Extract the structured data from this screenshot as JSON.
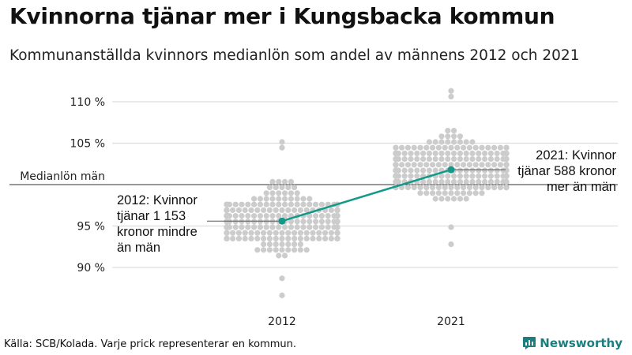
{
  "title": "Kvinnorna tjänar mer i Kungsbacka kommun",
  "subtitle": "Kommunanställda kvinnors medianlön som andel av männens 2012 och 2021",
  "footer": "Källa: SCB/Kolada. Varje prick representerar en kommun.",
  "brand": {
    "name": "Newsworthy",
    "icon": "newsworthy-logo-icon",
    "color": "#1b7f7f"
  },
  "chart_data": {
    "type": "scatter",
    "subtype": "beeswarm",
    "categories": [
      "2012",
      "2021"
    ],
    "y_ticks": [
      {
        "value": 90,
        "label": "90 %"
      },
      {
        "value": 95,
        "label": "95 %"
      },
      {
        "value": 100,
        "label": "Medianlön män"
      },
      {
        "value": 105,
        "label": "105 %"
      },
      {
        "value": 110,
        "label": "110 %"
      }
    ],
    "ylim": [
      87,
      112
    ],
    "grid": true,
    "swarm_ranges": {
      "2012": {
        "min": 86.5,
        "max": 105.3,
        "median": 95.7
      },
      "2021": {
        "min": 92.6,
        "max": 111.4,
        "median": 101.8
      }
    },
    "highlight": {
      "name": "Kungsbacka",
      "color": "#13988a",
      "points": [
        {
          "x": "2012",
          "y": 95.6
        },
        {
          "x": "2021",
          "y": 101.8
        }
      ]
    },
    "annotations": {
      "a2012": [
        "2012: Kvinnor",
        "tjänar 1 153",
        "kronor mindre",
        "än män"
      ],
      "a2021": [
        "2021: Kvinnor",
        "tjänar 588 kronor",
        "mer än män"
      ]
    },
    "colors": {
      "dots": "#cccccc",
      "grid": "#dddddd",
      "reference_line": "#333333"
    }
  }
}
